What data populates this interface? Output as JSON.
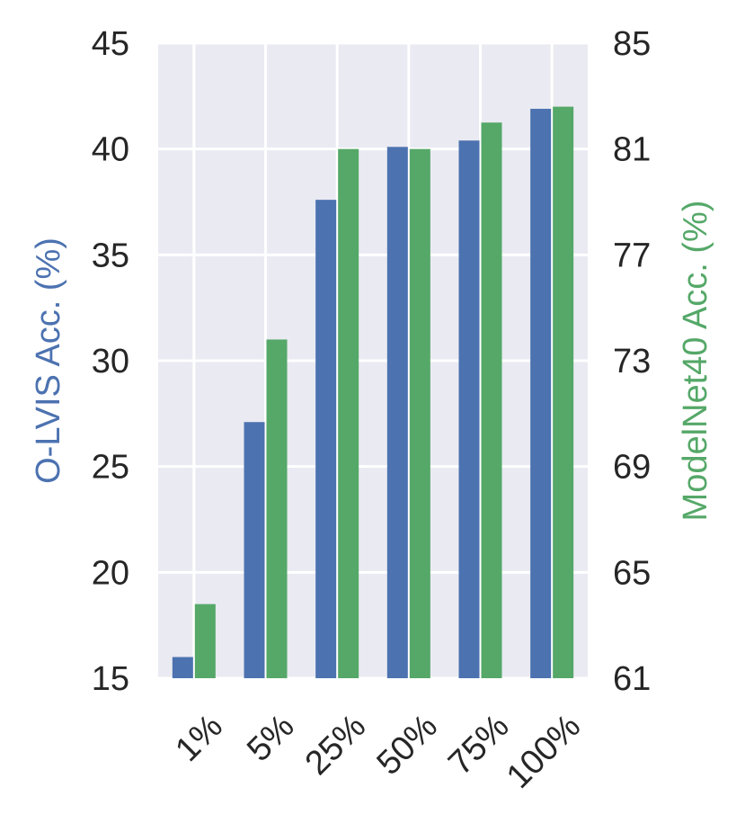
{
  "chart_data": {
    "type": "bar",
    "categories": [
      "1%",
      "5%",
      "25%",
      "50%",
      "75%",
      "100%"
    ],
    "series": [
      {
        "axis": "left",
        "color": "#4c72b0",
        "values": [
          16.0,
          27.1,
          37.6,
          40.1,
          40.4,
          41.9
        ]
      },
      {
        "axis": "right",
        "color": "#55a868",
        "values": [
          63.8,
          73.8,
          81.0,
          81.0,
          82.0,
          82.6
        ]
      }
    ],
    "ylabel_left": "O-LVIS Acc. (%)",
    "ylabel_right": "ModelNet40 Acc. (%)",
    "ylim_left": [
      15,
      45
    ],
    "ylim_right": [
      61,
      85
    ],
    "yticks_left": [
      "15",
      "20",
      "25",
      "30",
      "35",
      "40",
      "45"
    ],
    "yticks_right": [
      "61",
      "65",
      "69",
      "73",
      "77",
      "81",
      "85"
    ],
    "grid": true,
    "background": "#eaeaf2"
  }
}
